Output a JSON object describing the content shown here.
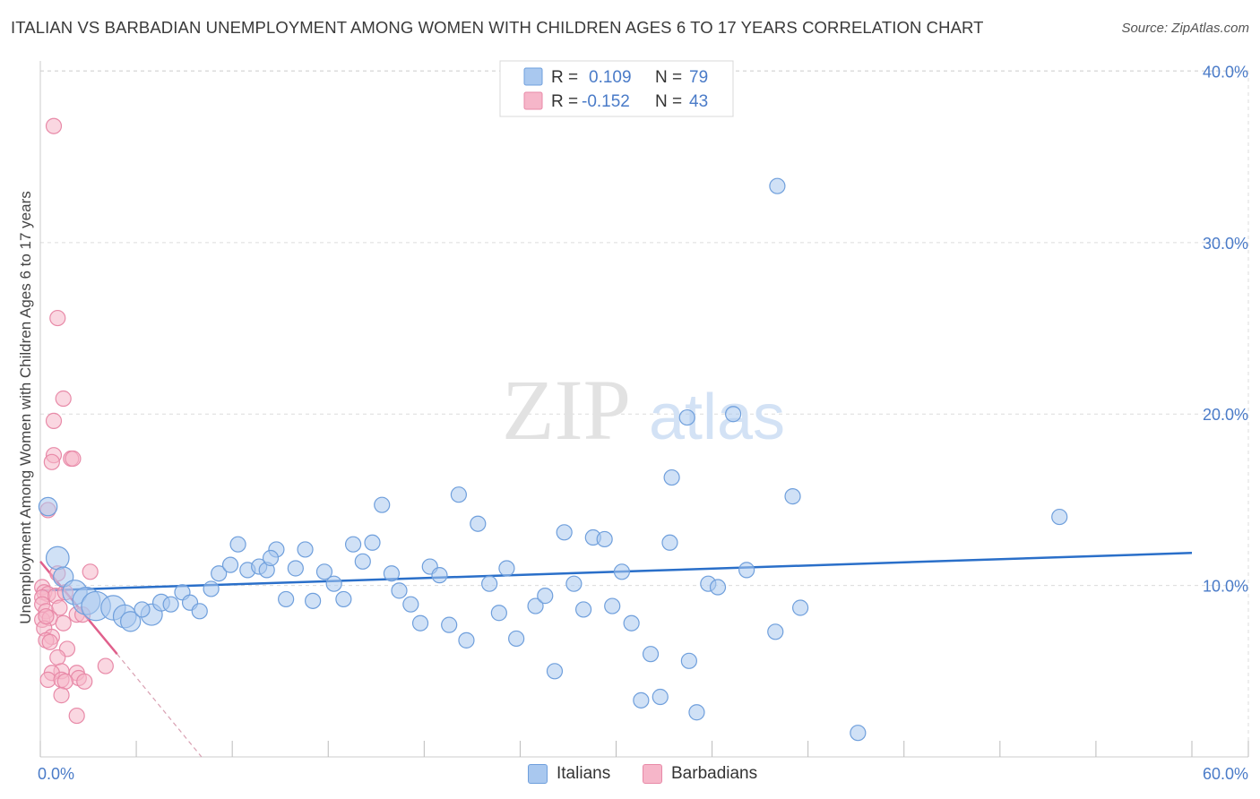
{
  "header": {
    "title": "ITALIAN VS BARBADIAN UNEMPLOYMENT AMONG WOMEN WITH CHILDREN AGES 6 TO 17 YEARS CORRELATION CHART",
    "source": "Source: ZipAtlas.com"
  },
  "watermark": {
    "zip": "ZIP",
    "atlas": "atlas"
  },
  "colors": {
    "blue_fill": "#a9c8ef",
    "blue_stroke": "#6f9fdc",
    "blue_line": "#2a6fc9",
    "pink_fill": "#f6b6c9",
    "pink_stroke": "#e88aa8",
    "pink_line": "#e0608c",
    "axis_label": "#4a7bc8",
    "grid": "#dcdcdc"
  },
  "legend": {
    "rows": [
      {
        "r_label": "R =",
        "r_value": "0.109",
        "n_label": "N =",
        "n_value": "79"
      },
      {
        "r_label": "R =",
        "r_value": "-0.152",
        "n_label": "N =",
        "n_value": "43"
      }
    ]
  },
  "bottom_legend": {
    "italians": "Italians",
    "barbadians": "Barbadians"
  },
  "chart_data": {
    "type": "scatter",
    "title": "ITALIAN VS BARBADIAN UNEMPLOYMENT AMONG WOMEN WITH CHILDREN AGES 6 TO 17 YEARS CORRELATION CHART",
    "xlabel": "",
    "ylabel": "Unemployment Among Women with Children Ages 6 to 17 years",
    "xlim": [
      0,
      60
    ],
    "ylim": [
      0,
      40.6
    ],
    "x_tick_labels": [
      {
        "value": 0,
        "label": "0.0%"
      },
      {
        "value": 60,
        "label": "60.0%"
      }
    ],
    "y_tick_labels": [
      {
        "value": 10,
        "label": "10.0%"
      },
      {
        "value": 20,
        "label": "20.0%"
      },
      {
        "value": 30,
        "label": "30.0%"
      },
      {
        "value": 40,
        "label": "40.0%"
      }
    ],
    "series": [
      {
        "name": "Italians",
        "r": 0.109,
        "n": 79,
        "trend": {
          "x": [
            0,
            60
          ],
          "y": [
            9.7,
            11.9
          ]
        },
        "points": [
          {
            "x": 0.4,
            "y": 14.6,
            "s": 1.2
          },
          {
            "x": 0.9,
            "y": 11.6,
            "s": 1.5
          },
          {
            "x": 1.2,
            "y": 10.5,
            "s": 1.3
          },
          {
            "x": 1.8,
            "y": 9.6,
            "s": 1.6
          },
          {
            "x": 2.4,
            "y": 9.1,
            "s": 1.8
          },
          {
            "x": 2.9,
            "y": 8.8,
            "s": 1.9
          },
          {
            "x": 3.8,
            "y": 8.7,
            "s": 1.6
          },
          {
            "x": 4.4,
            "y": 8.2,
            "s": 1.5
          },
          {
            "x": 4.7,
            "y": 7.9,
            "s": 1.3
          },
          {
            "x": 5.8,
            "y": 8.3,
            "s": 1.4
          },
          {
            "x": 6.3,
            "y": 9.0,
            "s": 1.1
          },
          {
            "x": 6.8,
            "y": 8.9,
            "s": 1.0
          },
          {
            "x": 7.4,
            "y": 9.6,
            "s": 1.0
          },
          {
            "x": 7.8,
            "y": 9.0,
            "s": 1.0
          },
          {
            "x": 8.3,
            "y": 8.5,
            "s": 1.0
          },
          {
            "x": 8.9,
            "y": 9.8,
            "s": 1.0
          },
          {
            "x": 9.3,
            "y": 10.7,
            "s": 1.0
          },
          {
            "x": 9.9,
            "y": 11.2,
            "s": 1.0
          },
          {
            "x": 10.3,
            "y": 12.4,
            "s": 1.0
          },
          {
            "x": 10.8,
            "y": 10.9,
            "s": 1.0
          },
          {
            "x": 11.4,
            "y": 11.1,
            "s": 1.0
          },
          {
            "x": 11.8,
            "y": 10.9,
            "s": 1.0
          },
          {
            "x": 12.3,
            "y": 12.1,
            "s": 1.0
          },
          {
            "x": 12.8,
            "y": 9.2,
            "s": 1.0
          },
          {
            "x": 13.3,
            "y": 11.0,
            "s": 1.0
          },
          {
            "x": 13.8,
            "y": 12.1,
            "s": 1.0
          },
          {
            "x": 14.2,
            "y": 9.1,
            "s": 1.0
          },
          {
            "x": 14.8,
            "y": 10.8,
            "s": 1.0
          },
          {
            "x": 15.3,
            "y": 10.1,
            "s": 1.0
          },
          {
            "x": 15.8,
            "y": 9.2,
            "s": 1.0
          },
          {
            "x": 16.3,
            "y": 12.4,
            "s": 1.0
          },
          {
            "x": 16.8,
            "y": 11.4,
            "s": 1.0
          },
          {
            "x": 17.3,
            "y": 12.5,
            "s": 1.0
          },
          {
            "x": 17.8,
            "y": 14.7,
            "s": 1.0
          },
          {
            "x": 18.3,
            "y": 10.7,
            "s": 1.0
          },
          {
            "x": 18.7,
            "y": 9.7,
            "s": 1.0
          },
          {
            "x": 19.3,
            "y": 8.9,
            "s": 1.0
          },
          {
            "x": 19.8,
            "y": 7.8,
            "s": 1.0
          },
          {
            "x": 20.3,
            "y": 11.1,
            "s": 1.0
          },
          {
            "x": 20.8,
            "y": 10.6,
            "s": 1.0
          },
          {
            "x": 21.3,
            "y": 7.7,
            "s": 1.0
          },
          {
            "x": 21.8,
            "y": 15.3,
            "s": 1.0
          },
          {
            "x": 22.2,
            "y": 6.8,
            "s": 1.0
          },
          {
            "x": 22.8,
            "y": 13.6,
            "s": 1.0
          },
          {
            "x": 23.4,
            "y": 10.1,
            "s": 1.0
          },
          {
            "x": 23.9,
            "y": 8.4,
            "s": 1.0
          },
          {
            "x": 24.3,
            "y": 11.0,
            "s": 1.0
          },
          {
            "x": 24.8,
            "y": 6.9,
            "s": 1.0
          },
          {
            "x": 25.8,
            "y": 8.8,
            "s": 1.0
          },
          {
            "x": 26.3,
            "y": 9.4,
            "s": 1.0
          },
          {
            "x": 26.8,
            "y": 5.0,
            "s": 1.0
          },
          {
            "x": 27.3,
            "y": 13.1,
            "s": 1.0
          },
          {
            "x": 27.8,
            "y": 10.1,
            "s": 1.0
          },
          {
            "x": 28.3,
            "y": 8.6,
            "s": 1.0
          },
          {
            "x": 28.8,
            "y": 12.8,
            "s": 1.0
          },
          {
            "x": 29.4,
            "y": 12.7,
            "s": 1.0
          },
          {
            "x": 29.8,
            "y": 8.8,
            "s": 1.0
          },
          {
            "x": 30.3,
            "y": 10.8,
            "s": 1.0
          },
          {
            "x": 30.8,
            "y": 7.8,
            "s": 1.0
          },
          {
            "x": 31.3,
            "y": 3.3,
            "s": 1.0
          },
          {
            "x": 31.8,
            "y": 6.0,
            "s": 1.0
          },
          {
            "x": 32.3,
            "y": 3.5,
            "s": 1.0
          },
          {
            "x": 32.8,
            "y": 12.5,
            "s": 1.0
          },
          {
            "x": 32.9,
            "y": 16.3,
            "s": 1.0
          },
          {
            "x": 33.8,
            "y": 5.6,
            "s": 1.0
          },
          {
            "x": 33.7,
            "y": 19.8,
            "s": 1.0
          },
          {
            "x": 34.2,
            "y": 2.6,
            "s": 1.0
          },
          {
            "x": 34.8,
            "y": 10.1,
            "s": 1.0
          },
          {
            "x": 35.3,
            "y": 9.9,
            "s": 1.0
          },
          {
            "x": 36.1,
            "y": 20.0,
            "s": 1.0
          },
          {
            "x": 36.8,
            "y": 10.9,
            "s": 1.0
          },
          {
            "x": 38.3,
            "y": 7.3,
            "s": 1.0
          },
          {
            "x": 38.4,
            "y": 33.3,
            "s": 1.0
          },
          {
            "x": 39.2,
            "y": 15.2,
            "s": 1.0
          },
          {
            "x": 39.6,
            "y": 8.7,
            "s": 1.0
          },
          {
            "x": 42.6,
            "y": 1.4,
            "s": 1.0
          },
          {
            "x": 53.1,
            "y": 14.0,
            "s": 1.0
          },
          {
            "x": 5.3,
            "y": 8.6,
            "s": 1.0
          },
          {
            "x": 12.0,
            "y": 11.6,
            "s": 1.0
          }
        ]
      },
      {
        "name": "Barbadians",
        "r": -0.152,
        "n": 43,
        "trend": {
          "x": [
            0,
            4.0
          ],
          "y": [
            11.4,
            6.0
          ]
        },
        "trend_dashed": {
          "x": [
            4.0,
            8.4
          ],
          "y": [
            6.0,
            0.0
          ]
        },
        "points": [
          {
            "x": 0.7,
            "y": 36.8
          },
          {
            "x": 0.9,
            "y": 25.6
          },
          {
            "x": 1.2,
            "y": 20.9
          },
          {
            "x": 0.7,
            "y": 19.6
          },
          {
            "x": 0.7,
            "y": 17.6
          },
          {
            "x": 0.6,
            "y": 17.2
          },
          {
            "x": 1.6,
            "y": 17.4
          },
          {
            "x": 1.7,
            "y": 17.4
          },
          {
            "x": 0.4,
            "y": 14.4
          },
          {
            "x": 0.9,
            "y": 10.7
          },
          {
            "x": 2.6,
            "y": 10.8
          },
          {
            "x": 0.1,
            "y": 9.9
          },
          {
            "x": 0.2,
            "y": 9.6
          },
          {
            "x": 0.4,
            "y": 9.5
          },
          {
            "x": 0.1,
            "y": 9.3
          },
          {
            "x": 0.8,
            "y": 9.4
          },
          {
            "x": 1.3,
            "y": 9.6
          },
          {
            "x": 0.1,
            "y": 8.9
          },
          {
            "x": 0.3,
            "y": 8.5
          },
          {
            "x": 1.0,
            "y": 8.7
          },
          {
            "x": 1.9,
            "y": 8.3
          },
          {
            "x": 2.2,
            "y": 8.3
          },
          {
            "x": 0.1,
            "y": 8.0
          },
          {
            "x": 0.5,
            "y": 8.1
          },
          {
            "x": 1.2,
            "y": 7.8
          },
          {
            "x": 0.2,
            "y": 7.5
          },
          {
            "x": 0.6,
            "y": 7.0
          },
          {
            "x": 0.3,
            "y": 6.8
          },
          {
            "x": 0.5,
            "y": 6.7
          },
          {
            "x": 1.4,
            "y": 6.3
          },
          {
            "x": 0.9,
            "y": 5.8
          },
          {
            "x": 3.4,
            "y": 5.3
          },
          {
            "x": 1.1,
            "y": 5.0
          },
          {
            "x": 0.6,
            "y": 4.9
          },
          {
            "x": 1.9,
            "y": 4.9
          },
          {
            "x": 2.0,
            "y": 4.6
          },
          {
            "x": 0.4,
            "y": 4.5
          },
          {
            "x": 1.1,
            "y": 4.5
          },
          {
            "x": 1.3,
            "y": 4.4
          },
          {
            "x": 2.3,
            "y": 4.4
          },
          {
            "x": 1.1,
            "y": 3.6
          },
          {
            "x": 1.9,
            "y": 2.4
          },
          {
            "x": 0.3,
            "y": 8.2
          }
        ]
      }
    ]
  }
}
